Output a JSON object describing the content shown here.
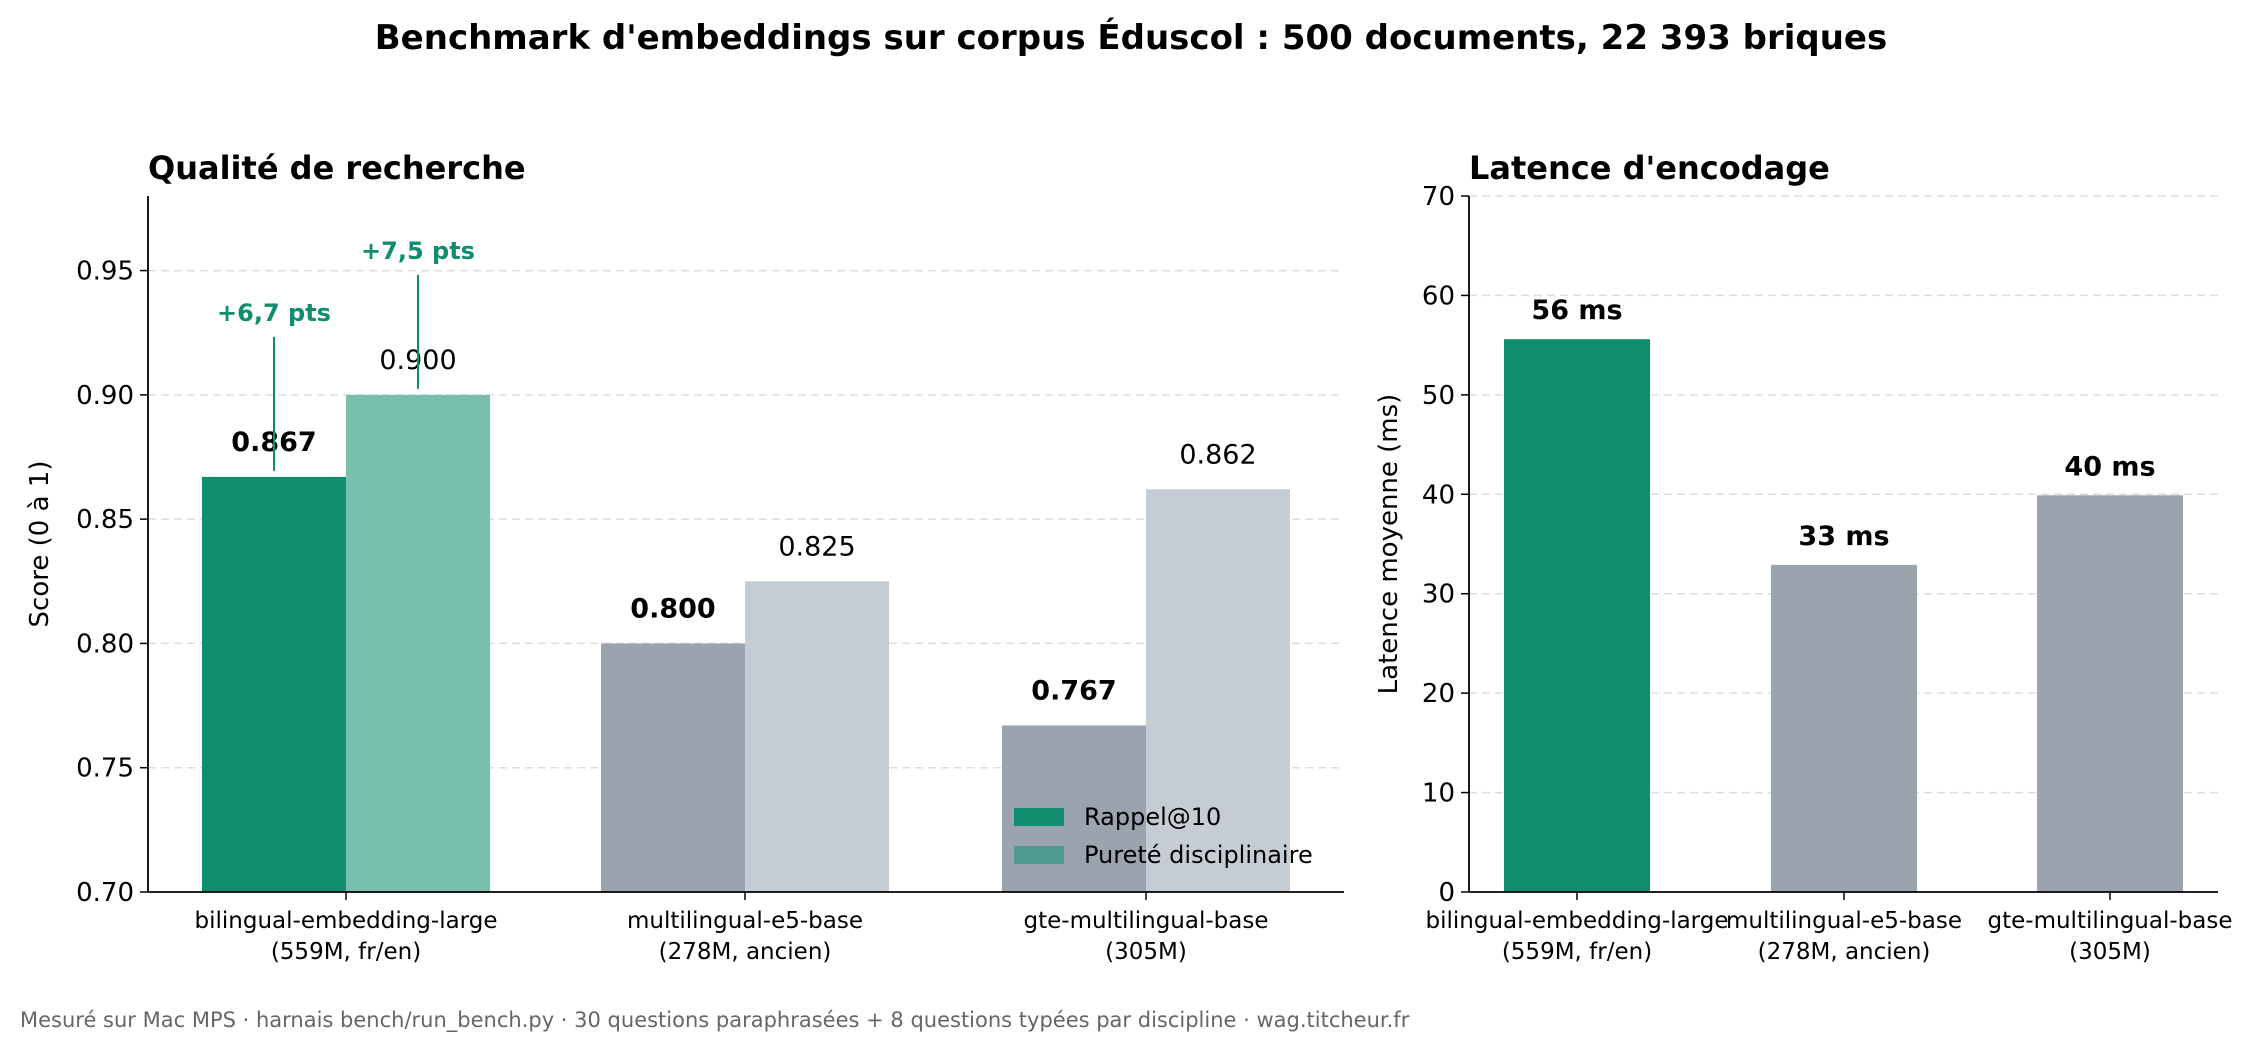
{
  "figure": {
    "suptitle": "Benchmark d'embeddings sur corpus Éduscol : 500 documents, 22 393 briques",
    "footer": "Mesuré sur Mac MPS · harnais bench/run_bench.py · 30 questions paraphrasées + 8 questions typées par discipline · wag.titcheur.fr"
  },
  "colors": {
    "accent": "#108c6e",
    "accent_light": "#79bfae",
    "gray": "#9aa3ae",
    "gray_light": "#c5ccd4",
    "annotation": "#108c6e"
  },
  "chart_data": [
    {
      "type": "bar",
      "title": "Qualité de recherche",
      "xlabel": "",
      "ylabel": "Score (0 à 1)",
      "ylim": [
        0.7,
        0.98
      ],
      "yticks": [
        "0.70",
        "0.75",
        "0.80",
        "0.85",
        "0.90",
        "0.95"
      ],
      "grid": true,
      "legend_position": "lower right",
      "categories": [
        [
          "bilingual-embedding-large",
          "(559M, fr/en)"
        ],
        [
          "multilingual-e5-base",
          "(278M, ancien)"
        ],
        [
          "gte-multilingual-base",
          "(305M)"
        ]
      ],
      "series": [
        {
          "name": "Rappel@10",
          "values": [
            0.867,
            0.8,
            0.767
          ],
          "labels": [
            "0.867",
            "0.800",
            "0.767"
          ],
          "colors": [
            "#108c6e",
            "#9aa3ae",
            "#9aa3ae"
          ],
          "legend_color": "#108c6e"
        },
        {
          "name": "Pureté disciplinaire",
          "values": [
            0.9,
            0.825,
            0.862
          ],
          "labels": [
            "0.900",
            "0.825",
            "0.862"
          ],
          "colors": [
            "#79bfae",
            "#c5ccd4",
            "#c5ccd4"
          ],
          "legend_color": "#4f9a90"
        }
      ],
      "annotations": [
        {
          "text": "+6,7 pts",
          "series": 0,
          "category": 0
        },
        {
          "text": "+7,5 pts",
          "series": 1,
          "category": 0
        }
      ]
    },
    {
      "type": "bar",
      "title": "Latence d'encodage",
      "xlabel": "",
      "ylabel": "Latence moyenne (ms)",
      "ylim": [
        0,
        70
      ],
      "yticks": [
        "0",
        "10",
        "20",
        "30",
        "40",
        "50",
        "60",
        "70"
      ],
      "grid": true,
      "categories": [
        [
          "bilingual-embedding-large",
          "(559M, fr/en)"
        ],
        [
          "multilingual-e5-base",
          "(278M, ancien)"
        ],
        [
          "gte-multilingual-base",
          "(305M)"
        ]
      ],
      "values": [
        55.6,
        32.9,
        39.9
      ],
      "labels": [
        "56 ms",
        "33 ms",
        "40 ms"
      ],
      "colors": [
        "#108c6e",
        "#9aa3ae",
        "#9aa3ae"
      ]
    }
  ]
}
